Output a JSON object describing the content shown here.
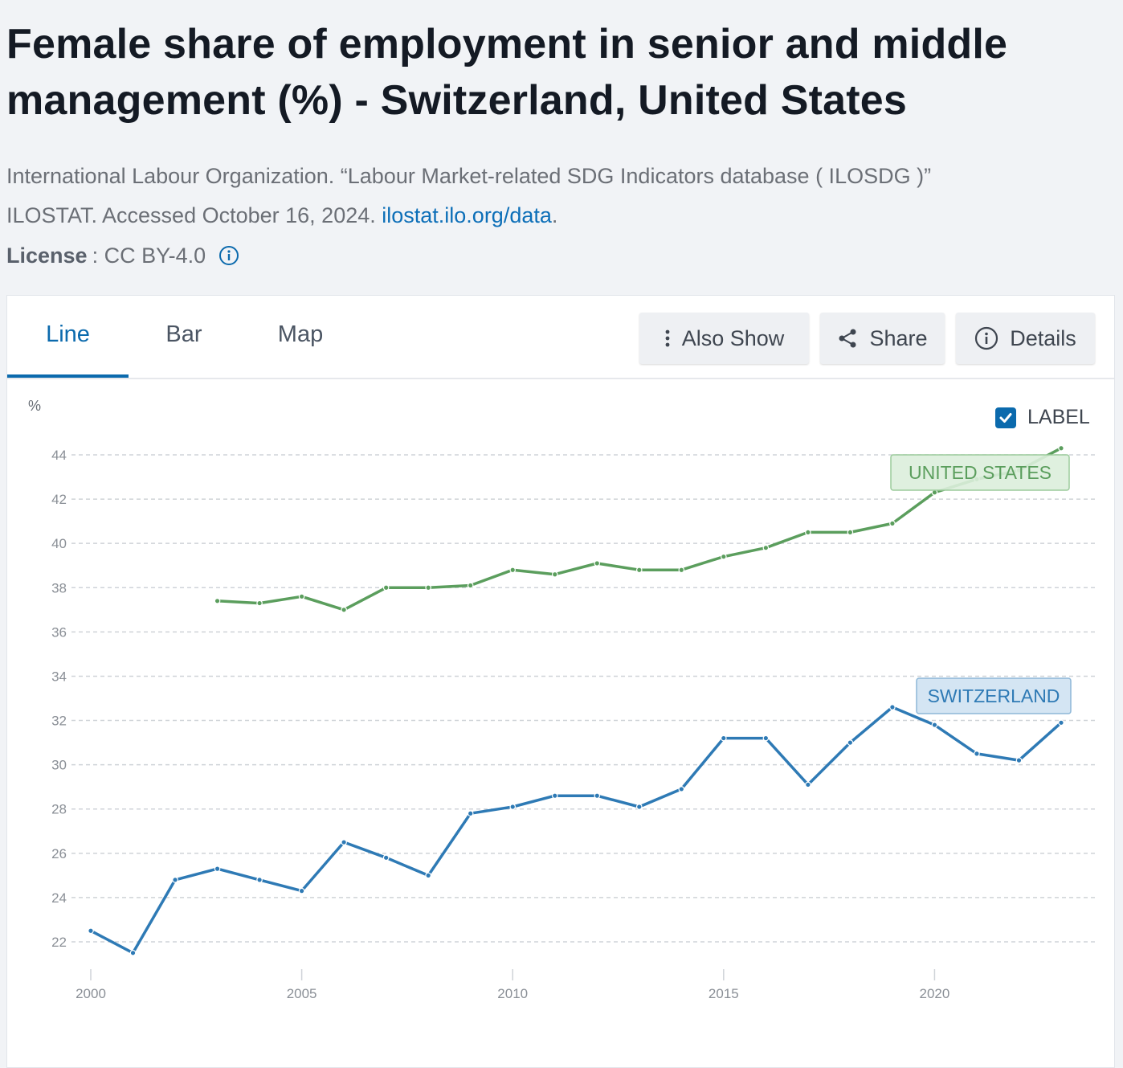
{
  "page": {
    "title": "Female share of employment in senior and middle management (%) - Switzerland, United States",
    "citation_line1": "International Labour Organization. “Labour Market-related SDG Indicators database ( ILOSDG )”",
    "citation_line2_prefix": "ILOSTAT. Accessed October 16, 2024. ",
    "citation_link": "ilostat.ilo.org/data",
    "citation_suffix": ".",
    "license_label": "License",
    "license_value": ": CC BY-4.0"
  },
  "tabs": [
    {
      "label": "Line",
      "active": true
    },
    {
      "label": "Bar",
      "active": false
    },
    {
      "label": "Map",
      "active": false
    }
  ],
  "toolbar": {
    "also_show": "Also Show",
    "share": "Share",
    "details": "Details"
  },
  "legend": {
    "checkbox_label": "LABEL",
    "checked": true
  },
  "colors": {
    "accent": "#0b6aad",
    "us": "#5b9e5d",
    "ch": "#2e7ab5"
  },
  "chart_data": {
    "type": "line",
    "ylabel": "%",
    "ylim": [
      21,
      44.5
    ],
    "yticks": [
      22,
      24,
      26,
      28,
      30,
      32,
      34,
      36,
      38,
      40,
      42,
      44
    ],
    "xlim": [
      2000,
      2023
    ],
    "xticks": [
      2000,
      2005,
      2010,
      2015,
      2020
    ],
    "grid": "horizontal dashed",
    "series": [
      {
        "name": "UNITED STATES",
        "color": "#5b9e5d",
        "x": [
          2003,
          2004,
          2005,
          2006,
          2007,
          2008,
          2009,
          2010,
          2011,
          2012,
          2013,
          2014,
          2015,
          2016,
          2017,
          2018,
          2019,
          2020,
          2021,
          2022,
          2023
        ],
        "values": [
          37.4,
          37.3,
          37.6,
          37.0,
          38.0,
          38.0,
          38.1,
          38.8,
          38.6,
          39.1,
          38.8,
          38.8,
          39.4,
          39.8,
          40.5,
          40.5,
          40.9,
          42.3,
          42.9,
          43.3,
          44.3
        ]
      },
      {
        "name": "SWITZERLAND",
        "color": "#2e7ab5",
        "x": [
          2000,
          2001,
          2002,
          2003,
          2004,
          2005,
          2006,
          2007,
          2008,
          2009,
          2010,
          2011,
          2012,
          2013,
          2014,
          2015,
          2016,
          2017,
          2018,
          2019,
          2020,
          2021,
          2022,
          2023
        ],
        "values": [
          22.5,
          21.5,
          24.8,
          25.3,
          24.8,
          24.3,
          26.5,
          25.8,
          25.0,
          27.8,
          28.1,
          28.6,
          28.6,
          28.1,
          28.9,
          31.2,
          31.2,
          29.1,
          31.0,
          32.6,
          31.8,
          30.5,
          30.2,
          31.9
        ]
      }
    ]
  }
}
